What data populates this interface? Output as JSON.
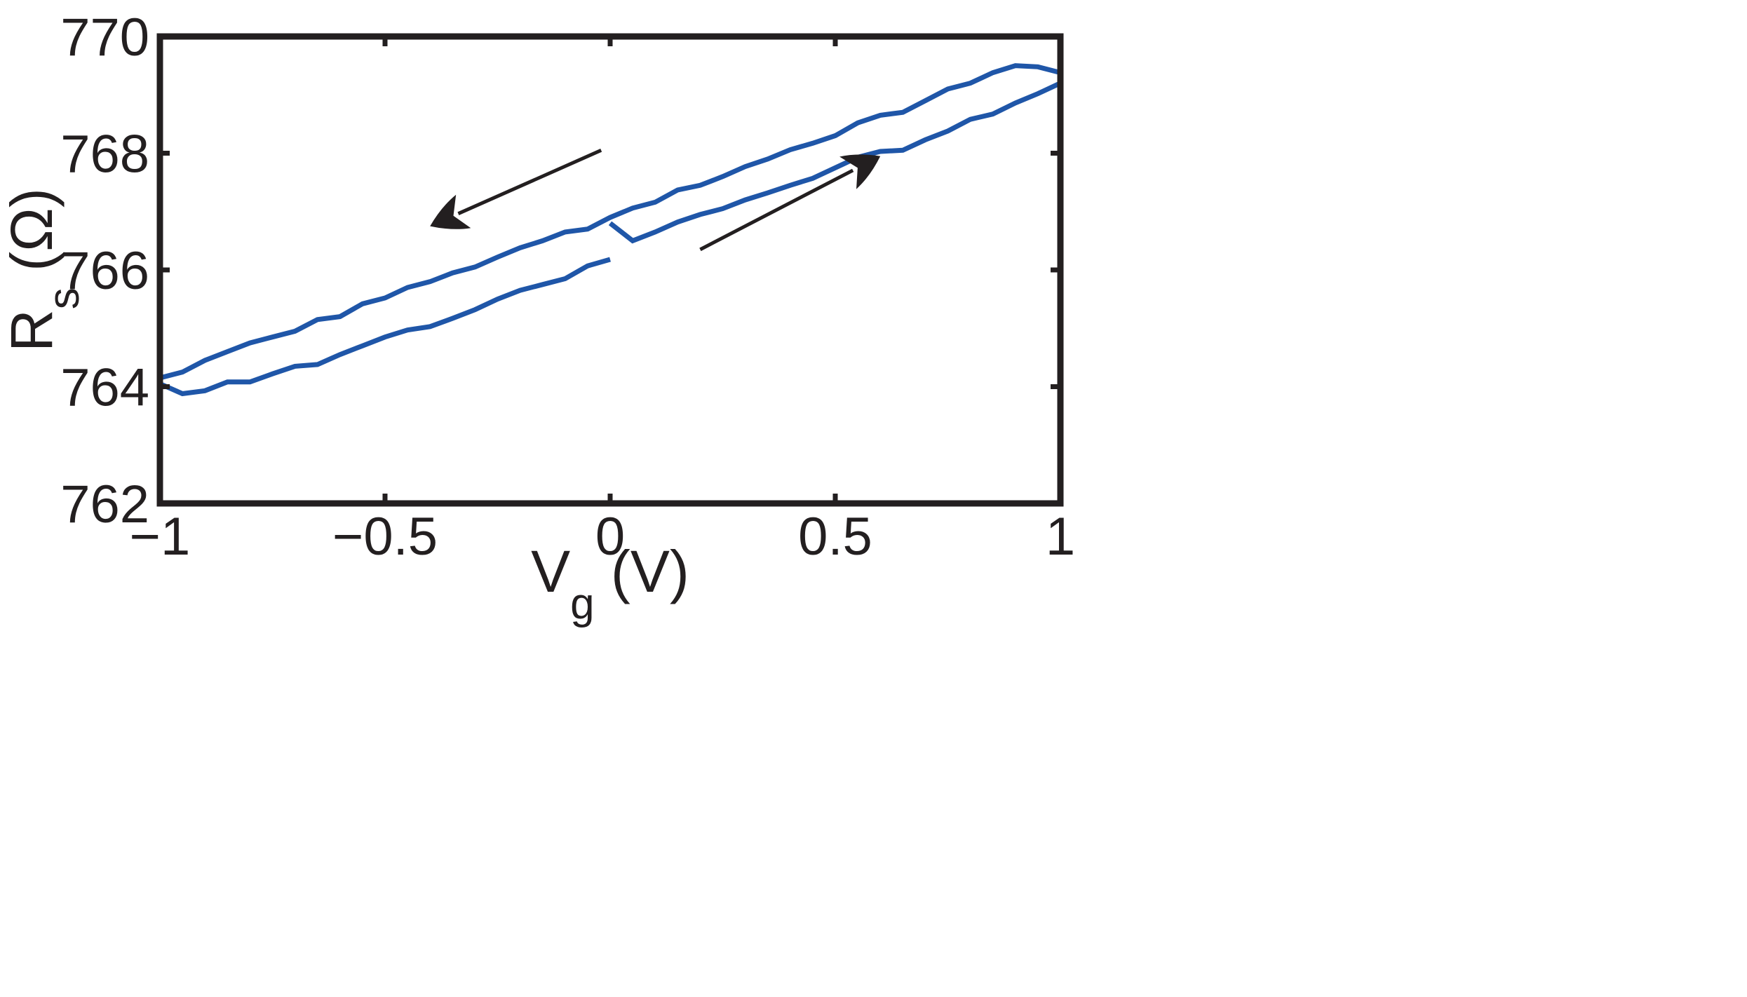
{
  "chart_data": {
    "type": "line",
    "xlim": [
      -1,
      1
    ],
    "ylim": [
      762,
      770
    ],
    "x_ticks": [
      -1,
      -0.5,
      0,
      0.5,
      1
    ],
    "x_tick_labels": [
      "−1",
      "−0.5",
      "0",
      "0.5",
      "1"
    ],
    "y_ticks": [
      762,
      764,
      766,
      768,
      770
    ],
    "y_tick_labels": [
      "762",
      "764",
      "766",
      "768",
      "770"
    ],
    "xlabel": {
      "main": "V",
      "sub": "g",
      "unit": " (V)"
    },
    "ylabel": {
      "main": "R",
      "sub": "s",
      "unit": " (Ω)"
    },
    "grid": false,
    "line_color": "#1f56a8",
    "arrow_color": "#231f20",
    "series": [
      {
        "x": [
          0,
          0.05,
          0.1,
          0.15,
          0.2,
          0.25,
          0.3,
          0.35,
          0.4,
          0.45,
          0.5,
          0.55,
          0.6,
          0.65,
          0.7,
          0.75,
          0.8,
          0.85,
          0.9,
          0.95,
          1
        ],
        "y": [
          766.8,
          766.5,
          766.65,
          766.82,
          766.95,
          767.05,
          767.2,
          767.32,
          767.45,
          767.57,
          767.75,
          767.93,
          768.03,
          768.05,
          768.23,
          768.38,
          768.58,
          768.67,
          768.86,
          769.02,
          769.2
        ]
      },
      {
        "x": [
          1,
          0.95,
          0.9,
          0.85,
          0.8,
          0.75,
          0.7,
          0.65,
          0.6,
          0.55,
          0.5,
          0.45,
          0.4,
          0.35,
          0.3,
          0.25,
          0.2,
          0.15,
          0.1,
          0.05,
          0,
          -0.05,
          -0.1,
          -0.15,
          -0.2,
          -0.25,
          -0.3,
          -0.35,
          -0.4,
          -0.45,
          -0.5,
          -0.55,
          -0.6,
          -0.65,
          -0.7,
          -0.75,
          -0.8,
          -0.85,
          -0.9,
          -0.95,
          -1
        ],
        "y": [
          769.38,
          769.48,
          769.5,
          769.38,
          769.2,
          769.1,
          768.9,
          768.7,
          768.65,
          768.52,
          768.3,
          768.17,
          768.06,
          767.9,
          767.77,
          767.6,
          767.45,
          767.37,
          767.16,
          767.06,
          766.9,
          766.7,
          766.65,
          766.5,
          766.38,
          766.22,
          766.05,
          765.95,
          765.8,
          765.7,
          765.52,
          765.42,
          765.2,
          765.15,
          764.95,
          764.85,
          764.75,
          764.6,
          764.45,
          764.25,
          764.15
        ]
      },
      {
        "x": [
          -1,
          -0.95,
          -0.9,
          -0.85,
          -0.8,
          -0.75,
          -0.7,
          -0.65,
          -0.6,
          -0.55,
          -0.5,
          -0.45,
          -0.4,
          -0.35,
          -0.3,
          -0.25,
          -0.2,
          -0.15,
          -0.1,
          -0.05,
          0
        ],
        "y": [
          764.05,
          763.88,
          763.93,
          764.08,
          764.08,
          764.22,
          764.35,
          764.38,
          764.55,
          764.7,
          764.85,
          764.97,
          765.03,
          765.17,
          765.32,
          765.5,
          765.65,
          765.75,
          765.85,
          766.07,
          766.18
        ]
      }
    ],
    "arrows": [
      {
        "direction": "backward",
        "from": [
          -0.02,
          768.05
        ],
        "to": [
          -0.4,
          766.75
        ]
      },
      {
        "direction": "forward",
        "from": [
          0.2,
          766.35
        ],
        "to": [
          0.6,
          767.95
        ]
      }
    ]
  }
}
